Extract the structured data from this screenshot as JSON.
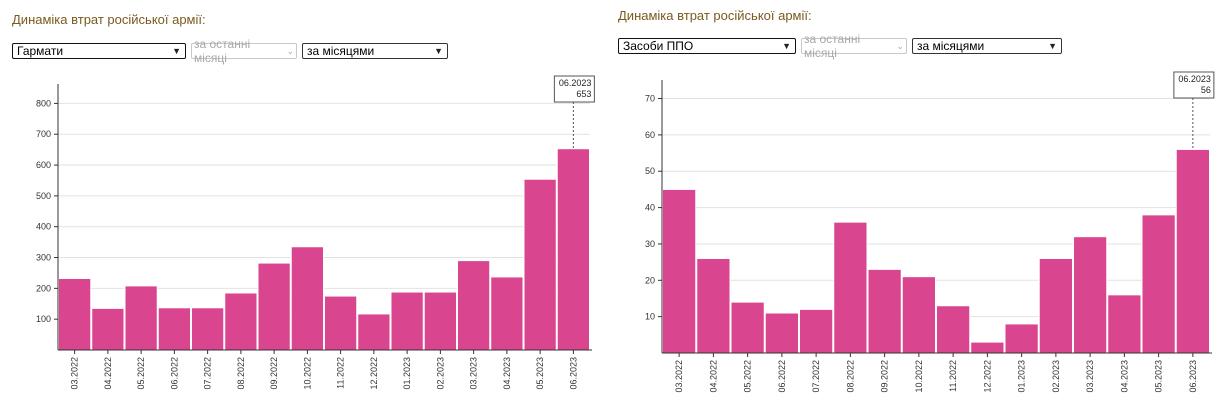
{
  "panels": [
    {
      "title": "Динаміка втрат російської армії:",
      "category_select": "Гармати",
      "period_select": "за останні місяці",
      "group_select": "за місяцями"
    },
    {
      "title": "Динаміка втрат російської армії:",
      "category_select": "Засоби ППО",
      "period_select": "за останні місяці",
      "group_select": "за місяцями"
    }
  ],
  "chart_data": [
    {
      "type": "bar",
      "title": "Гармати",
      "categories": [
        "03.2022",
        "04.2022",
        "05.2022",
        "06.2022",
        "07.2022",
        "08.2022",
        "09.2022",
        "10.2022",
        "11.2022",
        "12.2022",
        "01.2023",
        "02.2023",
        "03.2023",
        "04.2023",
        "05.2023",
        "06.2023"
      ],
      "values": [
        232,
        135,
        208,
        137,
        137,
        185,
        282,
        335,
        175,
        117,
        188,
        188,
        290,
        237,
        554,
        653
      ],
      "ylim": [
        0,
        850
      ],
      "yticks": [
        100,
        200,
        300,
        400,
        500,
        600,
        700,
        800
      ],
      "grid": true,
      "tooltip": {
        "label": "06.2023",
        "value": "653"
      }
    },
    {
      "type": "bar",
      "title": "Засоби ППО",
      "categories": [
        "03.2022",
        "04.2022",
        "05.2022",
        "06.2022",
        "07.2022",
        "08.2022",
        "09.2022",
        "10.2022",
        "11.2022",
        "12.2022",
        "01.2023",
        "02.2023",
        "03.2023",
        "04.2023",
        "05.2023",
        "06.2023"
      ],
      "values": [
        45,
        26,
        14,
        11,
        12,
        36,
        23,
        21,
        13,
        3,
        8,
        26,
        32,
        16,
        38,
        56
      ],
      "ylim": [
        0,
        74
      ],
      "yticks": [
        10,
        20,
        30,
        40,
        50,
        60,
        70
      ],
      "grid": true,
      "tooltip": {
        "label": "06.2023",
        "value": "56"
      }
    }
  ]
}
